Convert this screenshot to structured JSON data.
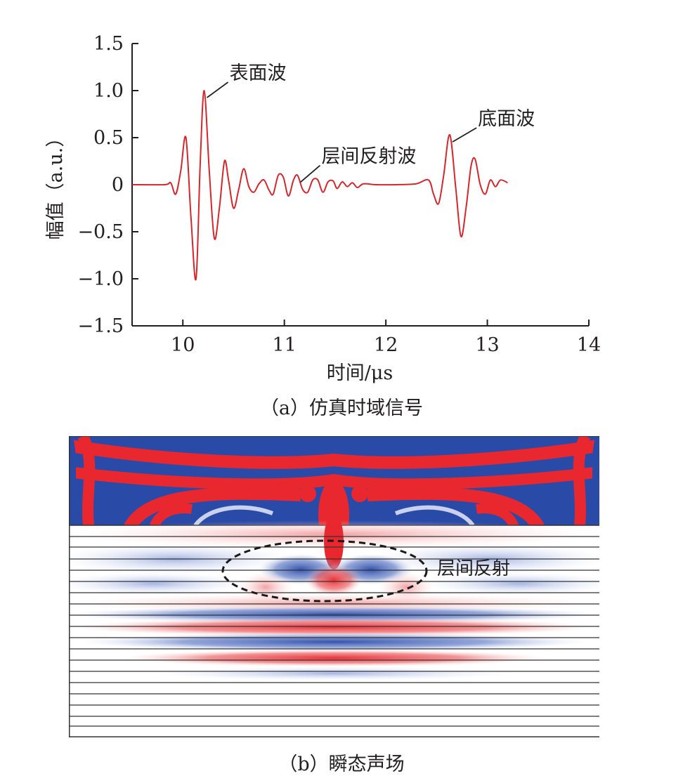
{
  "chart_data": [
    {
      "type": "line",
      "xlabel": "时间/μs",
      "ylabel": "幅值（a.u.）",
      "xlim": [
        9.5,
        14
      ],
      "ylim": [
        -1.5,
        1.5
      ],
      "xticks": [
        10,
        11,
        12,
        13,
        14
      ],
      "yticks": [
        1.5,
        1.0,
        0.5,
        0,
        -0.5,
        -1.0,
        -1.5
      ],
      "ytick_labels": [
        "1.5",
        "1.0",
        "0.5",
        "0",
        "−0.5",
        "−1.0",
        "−1.5"
      ],
      "grid": false,
      "series": [
        {
          "color": "#d7262b",
          "x": [
            9.5,
            9.82,
            9.88,
            9.93,
            9.98,
            10.03,
            10.08,
            10.13,
            10.17,
            10.21,
            10.26,
            10.31,
            10.36,
            10.41,
            10.45,
            10.5,
            10.55,
            10.6,
            10.65,
            10.7,
            10.75,
            10.8,
            10.85,
            10.89,
            10.94,
            10.99,
            11.04,
            11.09,
            11.13,
            11.18,
            11.23,
            11.28,
            11.33,
            11.38,
            11.43,
            11.48,
            11.52,
            11.57,
            11.62,
            11.67,
            11.72,
            11.78,
            11.9,
            12.1,
            12.3,
            12.42,
            12.47,
            12.52,
            12.57,
            12.63,
            12.69,
            12.74,
            12.79,
            12.84,
            12.88,
            12.93,
            12.98,
            13.03,
            13.08,
            13.13,
            13.2
          ],
          "y": [
            0,
            0,
            0.02,
            -0.1,
            0.15,
            0.5,
            -0.35,
            -1.0,
            0.2,
            1.0,
            0.15,
            -0.57,
            -0.25,
            0.25,
            0.05,
            -0.25,
            -0.05,
            0.17,
            -0.02,
            -0.08,
            0.01,
            0.05,
            -0.06,
            -0.1,
            0.1,
            0.08,
            -0.12,
            0.05,
            0.1,
            -0.05,
            -0.08,
            0.05,
            0.05,
            -0.08,
            0.03,
            0.04,
            -0.04,
            0.03,
            -0.02,
            0.02,
            -0.03,
            0.01,
            0,
            0,
            0.01,
            0.05,
            -0.1,
            -0.2,
            0.1,
            0.53,
            -0.05,
            -0.55,
            -0.25,
            0.2,
            0.27,
            0,
            -0.1,
            0.05,
            -0.02,
            0.05,
            0.02
          ]
        }
      ],
      "annotations": [
        {
          "text": "表面波",
          "x": 10.21,
          "y": 1.0
        },
        {
          "text": "层间反射波",
          "x": 11.13,
          "y": 0.1
        },
        {
          "text": "底面波",
          "x": 12.63,
          "y": 0.53
        }
      ]
    }
  ],
  "captions": {
    "a": "（a）仿真时域信号",
    "b": "（b）瞬态声场"
  },
  "field": {
    "annotation": "层间反射",
    "colors": {
      "red": "#e8282e",
      "blue": "#2a4aa8",
      "lines": "#333333"
    }
  }
}
